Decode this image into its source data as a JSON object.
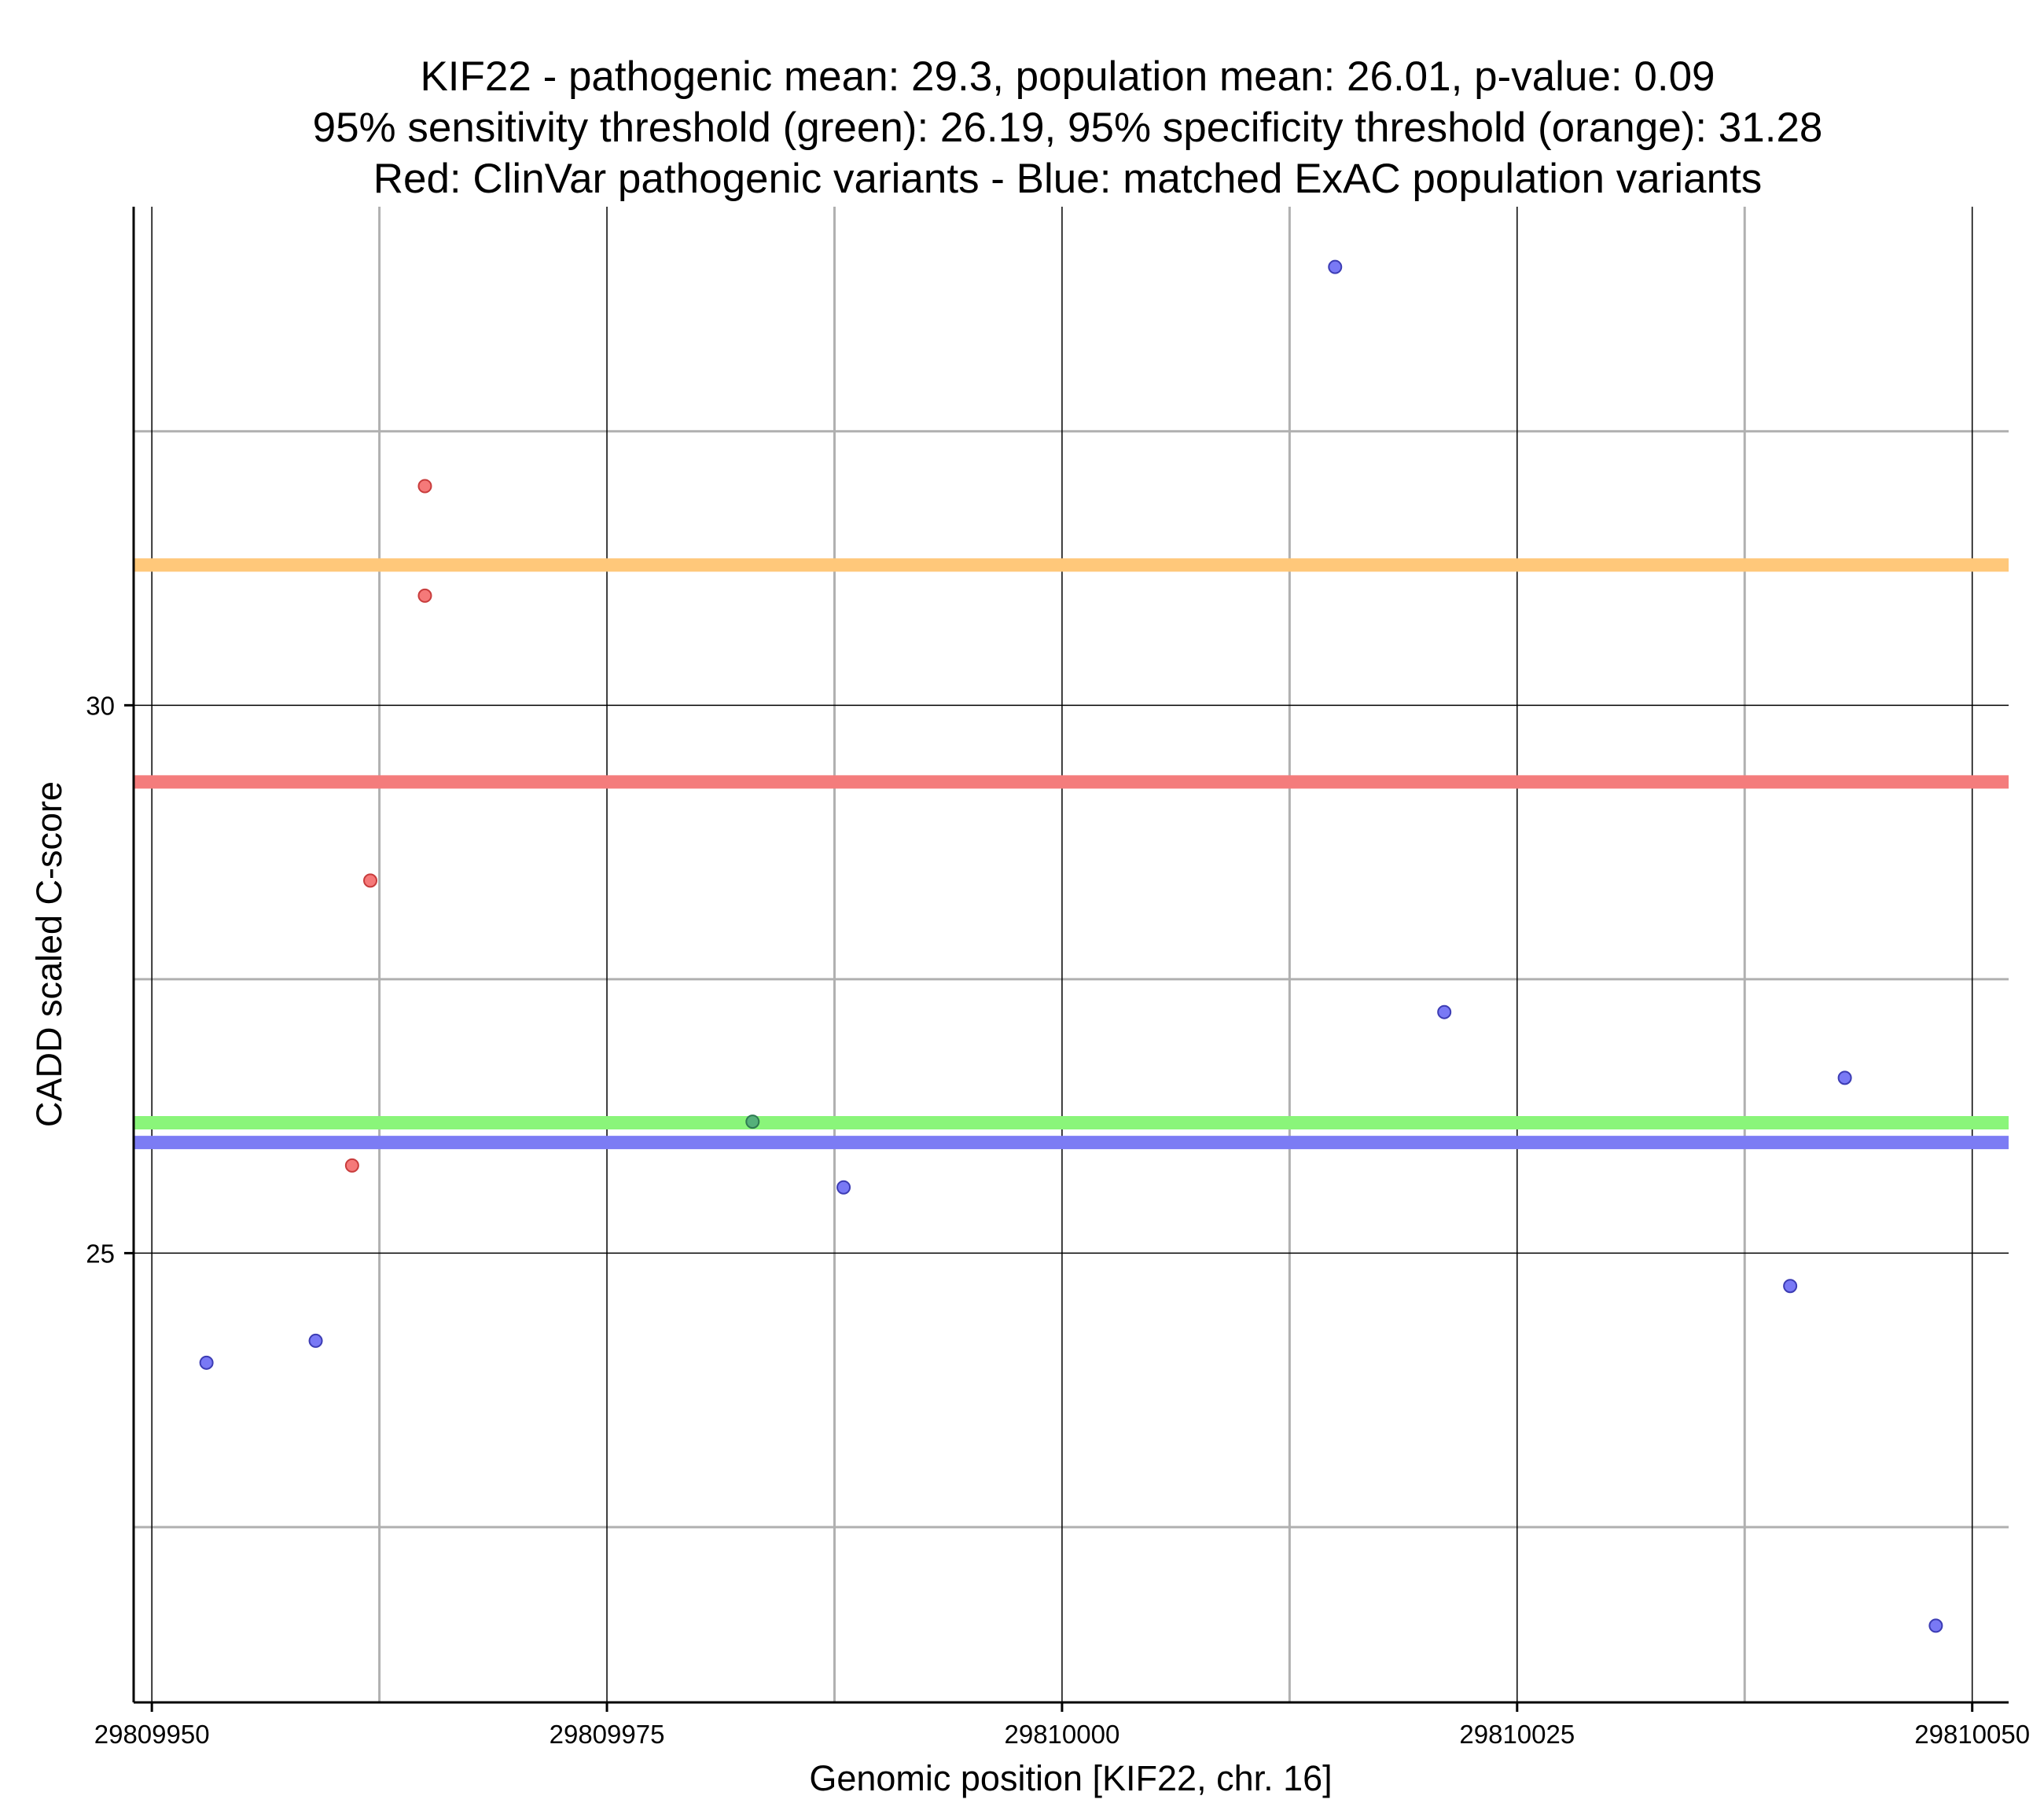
{
  "chart_data": {
    "type": "scatter",
    "title_lines": [
      "KIF22 - pathogenic mean: 29.3, population mean: 26.01, p-value: 0.09",
      "95% sensitivity threshold (green): 26.19, 95% specificity threshold (orange): 31.28",
      "Red: ClinVar pathogenic variants - Blue: matched ExAC population variants"
    ],
    "xlabel": "Genomic position [KIF22, chr. 16]",
    "ylabel": "CADD scaled C-score",
    "xlim": [
      29809949,
      29810052
    ],
    "ylim": [
      20.9,
      34.55
    ],
    "x_ticks": [
      {
        "value": 29809950,
        "label": "29809950"
      },
      {
        "value": 29809975,
        "label": "29809975"
      },
      {
        "value": 29810000,
        "label": "29810000"
      },
      {
        "value": 29810025,
        "label": "29810025"
      },
      {
        "value": 29810050,
        "label": "29810050"
      }
    ],
    "x_minor_gridlines": [
      29809962.5,
      29809987.5,
      29810012.5,
      29810037.5
    ],
    "y_ticks": [
      {
        "value": 25,
        "label": "25"
      },
      {
        "value": 30,
        "label": "30"
      }
    ],
    "y_minor_gridlines": [
      22.5,
      27.5,
      32.5
    ],
    "grid": true,
    "reference_lines": [
      {
        "name": "specificity-threshold",
        "value": 31.28,
        "color": "#ffc87a"
      },
      {
        "name": "pathogenic-mean",
        "value": 29.3,
        "color": "#f47c7c"
      },
      {
        "name": "sensitivity-threshold",
        "value": 26.19,
        "color": "#8af57a"
      },
      {
        "name": "population-mean",
        "value": 26.01,
        "color": "#7c7cf4"
      }
    ],
    "series": [
      {
        "name": "ClinVar pathogenic variants",
        "color": "#f46a6a",
        "stroke": "#c83c3c",
        "points": [
          {
            "x": 29809965,
            "y": 32.0
          },
          {
            "x": 29809965,
            "y": 31.0
          },
          {
            "x": 29809962,
            "y": 28.4
          },
          {
            "x": 29809961,
            "y": 25.8
          }
        ]
      },
      {
        "name": "matched ExAC population variants",
        "color": "#6a6af4",
        "stroke": "#3c3cb4",
        "points": [
          {
            "x": 29810015,
            "y": 34.0
          },
          {
            "x": 29810021,
            "y": 27.2
          },
          {
            "x": 29810043,
            "y": 26.6
          },
          {
            "x": 29809988,
            "y": 25.6
          },
          {
            "x": 29810040,
            "y": 24.7
          },
          {
            "x": 29809959,
            "y": 24.2
          },
          {
            "x": 29809953,
            "y": 24.0
          },
          {
            "x": 29810048,
            "y": 21.6
          }
        ]
      },
      {
        "name": "overlap variant",
        "color": "#4fa87a",
        "stroke": "#2f7a52",
        "points": [
          {
            "x": 29809983,
            "y": 26.2
          }
        ]
      }
    ]
  }
}
